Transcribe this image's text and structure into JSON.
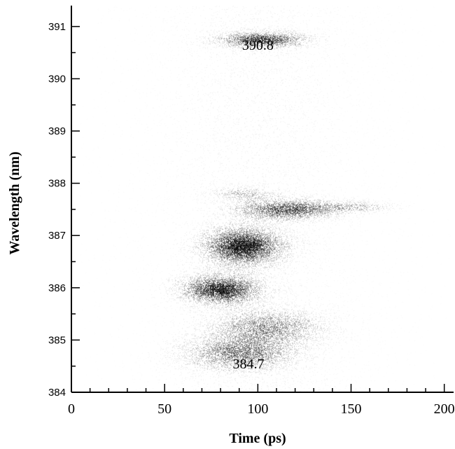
{
  "chart_data": {
    "type": "heatmap",
    "title": "",
    "xlabel": "Time (ps)",
    "ylabel": "Wavelength (nm)",
    "xlim": [
      0,
      205
    ],
    "ylim": [
      384,
      391.4
    ],
    "x_ticks": [
      0,
      50,
      100,
      150,
      200
    ],
    "x_tick_labels": [
      "0",
      "50",
      "100",
      "150",
      "200"
    ],
    "x_minor_step": 10,
    "y_ticks": [
      384,
      385,
      386,
      387,
      388,
      389,
      390,
      391
    ],
    "y_tick_labels": [
      "384",
      "385",
      "386",
      "387",
      "388",
      "389",
      "390",
      "391"
    ],
    "y_minor_step": 0.5,
    "grid": false,
    "colormap": "grayscale (white = low, black = high)",
    "emission_bands": [
      {
        "time_ps": 102,
        "wavelength_nm": 390.75,
        "time_spread_ps": 14,
        "wavelength_spread_nm": 0.09,
        "intensity": 0.85
      },
      {
        "time_ps": 115,
        "wavelength_nm": 387.5,
        "time_spread_ps": 16,
        "wavelength_spread_nm": 0.12,
        "intensity": 0.75
      },
      {
        "time_ps": 150,
        "wavelength_nm": 387.55,
        "time_spread_ps": 14,
        "wavelength_spread_nm": 0.07,
        "intensity": 0.35
      },
      {
        "time_ps": 92,
        "wavelength_nm": 387.8,
        "time_spread_ps": 10,
        "wavelength_spread_nm": 0.08,
        "intensity": 0.3
      },
      {
        "time_ps": 92,
        "wavelength_nm": 386.8,
        "time_spread_ps": 13,
        "wavelength_spread_nm": 0.22,
        "intensity": 1.0
      },
      {
        "time_ps": 80,
        "wavelength_nm": 385.97,
        "time_spread_ps": 13,
        "wavelength_spread_nm": 0.17,
        "intensity": 0.95
      },
      {
        "time_ps": 105,
        "wavelength_nm": 385.25,
        "time_spread_ps": 18,
        "wavelength_spread_nm": 0.2,
        "intensity": 0.5
      },
      {
        "time_ps": 90,
        "wavelength_nm": 384.75,
        "time_spread_ps": 18,
        "wavelength_spread_nm": 0.2,
        "intensity": 0.6
      }
    ],
    "annotations": [
      {
        "text": "390.8",
        "x": 100,
        "y": 390.8
      },
      {
        "text": "384.7",
        "x": 95,
        "y": 384.7
      }
    ]
  }
}
